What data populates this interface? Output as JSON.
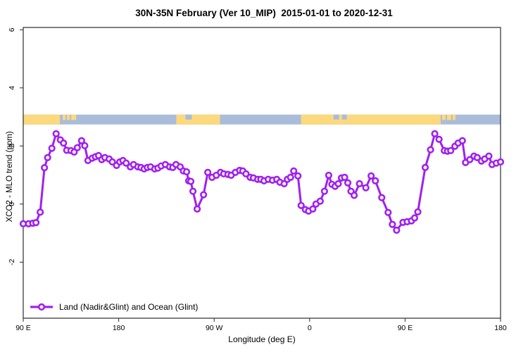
{
  "title": "30N-35N February (Ver 10_MIP)  2015-01-01 to 2020-12-31",
  "chart_data": {
    "type": "line",
    "title": "30N-35N February (Ver 10_MIP)  2015-01-01 to 2020-12-31",
    "xlabel": "Longitude (deg E)",
    "ylabel": "XCO2 - MLO trend (ppm)",
    "xlim": [
      90,
      540
    ],
    "ylim": [
      -3.93,
      6.08
    ],
    "grid": false,
    "x_ticks": [
      {
        "value": 90,
        "label": "90 E"
      },
      {
        "value": 180,
        "label": "180"
      },
      {
        "value": 270,
        "label": "90 W"
      },
      {
        "value": 360,
        "label": "0"
      },
      {
        "value": 450,
        "label": "90 E"
      },
      {
        "value": 540,
        "label": "180"
      }
    ],
    "y_ticks": [
      {
        "value": 6,
        "label": "6"
      },
      {
        "value": 4,
        "label": "4"
      },
      {
        "value": 2,
        "label": "2"
      },
      {
        "value": 0,
        "label": "0"
      },
      {
        "value": -2,
        "label": "-2"
      }
    ],
    "legend_position": "bottom-left",
    "legend": [
      {
        "label": "Land (Nadir&Glint) and Ocean (Glint)",
        "color": "#A020F0",
        "marker": "open-circle"
      }
    ],
    "series": [
      {
        "name": "Land (Nadir&Glint) and Ocean (Glint)",
        "color": "#A020F0",
        "marker": "open-circle",
        "points": [
          [
            90,
            -0.68
          ],
          [
            95,
            -0.68
          ],
          [
            99,
            -0.66
          ],
          [
            102,
            -0.64
          ],
          [
            106,
            -0.28
          ],
          [
            110,
            1.25
          ],
          [
            113,
            1.6
          ],
          [
            117,
            1.92
          ],
          [
            121,
            2.42
          ],
          [
            125,
            2.21
          ],
          [
            128,
            2.1
          ],
          [
            131,
            1.85
          ],
          [
            135,
            1.84
          ],
          [
            138,
            1.79
          ],
          [
            141,
            1.94
          ],
          [
            145,
            2.18
          ],
          [
            148,
            2.01
          ],
          [
            151,
            1.5
          ],
          [
            155,
            1.58
          ],
          [
            158,
            1.63
          ],
          [
            161,
            1.67
          ],
          [
            164,
            1.53
          ],
          [
            167,
            1.6
          ],
          [
            171,
            1.55
          ],
          [
            174,
            1.45
          ],
          [
            178,
            1.33
          ],
          [
            181,
            1.45
          ],
          [
            184,
            1.5
          ],
          [
            187,
            1.41
          ],
          [
            191,
            1.28
          ],
          [
            194,
            1.36
          ],
          [
            198,
            1.28
          ],
          [
            201,
            1.26
          ],
          [
            204,
            1.21
          ],
          [
            207,
            1.26
          ],
          [
            210,
            1.28
          ],
          [
            214,
            1.21
          ],
          [
            217,
            1.24
          ],
          [
            220,
            1.31
          ],
          [
            224,
            1.36
          ],
          [
            228,
            1.28
          ],
          [
            231,
            1.26
          ],
          [
            234,
            1.36
          ],
          [
            238,
            1.28
          ],
          [
            241,
            1.14
          ],
          [
            244,
            1.11
          ],
          [
            246,
            0.8
          ],
          [
            248,
            0.78
          ],
          [
            250,
            0.44
          ],
          [
            254,
            -0.17
          ],
          [
            260,
            0.32
          ],
          [
            264,
            1.09
          ],
          [
            268,
            0.92
          ],
          [
            272,
            0.99
          ],
          [
            276,
            1.09
          ],
          [
            279,
            1.04
          ],
          [
            283,
            1.02
          ],
          [
            286,
            0.99
          ],
          [
            290,
            1.09
          ],
          [
            294,
            1.16
          ],
          [
            297,
            1.14
          ],
          [
            300,
            1.04
          ],
          [
            304,
            0.92
          ],
          [
            307,
            0.9
          ],
          [
            311,
            0.85
          ],
          [
            314,
            0.85
          ],
          [
            317,
            0.8
          ],
          [
            321,
            0.85
          ],
          [
            325,
            0.82
          ],
          [
            329,
            0.85
          ],
          [
            332,
            0.75
          ],
          [
            336,
            0.7
          ],
          [
            339,
            0.85
          ],
          [
            342,
            0.92
          ],
          [
            345,
            1.14
          ],
          [
            349,
            0.97
          ],
          [
            352,
            -0.05
          ],
          [
            356,
            -0.19
          ],
          [
            359,
            -0.24
          ],
          [
            363,
            -0.17
          ],
          [
            366,
            0.0
          ],
          [
            370,
            0.1
          ],
          [
            374,
            0.44
          ],
          [
            378,
            0.99
          ],
          [
            381,
            0.68
          ],
          [
            384,
            0.61
          ],
          [
            387,
            0.7
          ],
          [
            390,
            0.9
          ],
          [
            393,
            0.92
          ],
          [
            396,
            0.73
          ],
          [
            399,
            0.44
          ],
          [
            402,
            0.3
          ],
          [
            407,
            0.7
          ],
          [
            413,
            0.56
          ],
          [
            418,
            0.97
          ],
          [
            422,
            0.8
          ],
          [
            428,
            0.22
          ],
          [
            434,
            -0.29
          ],
          [
            438,
            -0.7
          ],
          [
            442,
            -0.9
          ],
          [
            448,
            -0.63
          ],
          [
            452,
            -0.61
          ],
          [
            456,
            -0.58
          ],
          [
            459,
            -0.48
          ],
          [
            462,
            -0.27
          ],
          [
            469,
            1.26
          ],
          [
            474,
            1.87
          ],
          [
            478,
            2.42
          ],
          [
            482,
            2.23
          ],
          [
            487,
            1.84
          ],
          [
            490,
            1.82
          ],
          [
            493,
            1.84
          ],
          [
            497,
            1.99
          ],
          [
            500,
            2.1
          ],
          [
            504,
            2.18
          ],
          [
            507,
            1.43
          ],
          [
            511,
            1.53
          ],
          [
            515,
            1.65
          ],
          [
            518,
            1.6
          ],
          [
            522,
            1.48
          ],
          [
            525,
            1.55
          ],
          [
            529,
            1.65
          ],
          [
            532,
            1.36
          ],
          [
            536,
            1.41
          ],
          [
            540,
            1.45
          ]
        ]
      }
    ],
    "map_band": {
      "description": "world coastline strip at 30N-35N",
      "value_range": [
        2.74,
        3.08
      ],
      "ocean_color": "#A9BDDB",
      "land_color": "#FDD97E",
      "land_segments_lon": [
        [
          90,
          124.6
        ],
        [
          234.3,
          275.5
        ],
        [
          351.9,
          483.5
        ]
      ],
      "island_specks_lon": [
        [
          127.2,
          129.9
        ],
        [
          131.2,
          133.9
        ],
        [
          135.2,
          139.9
        ],
        [
          484.8,
          488.2
        ],
        [
          489.5,
          493.5
        ],
        [
          494.8,
          497.5
        ]
      ],
      "sea_notches_lon": [
        [
          242.9,
          248.9
        ],
        [
          382.5,
          387.8
        ],
        [
          390.5,
          395.1
        ]
      ]
    }
  },
  "colors": {
    "line": "#A020F0",
    "marker_fill": "#ffffff",
    "axis": "#2b2b2b",
    "land": "#FDD97E",
    "ocean": "#A9BDDB"
  }
}
